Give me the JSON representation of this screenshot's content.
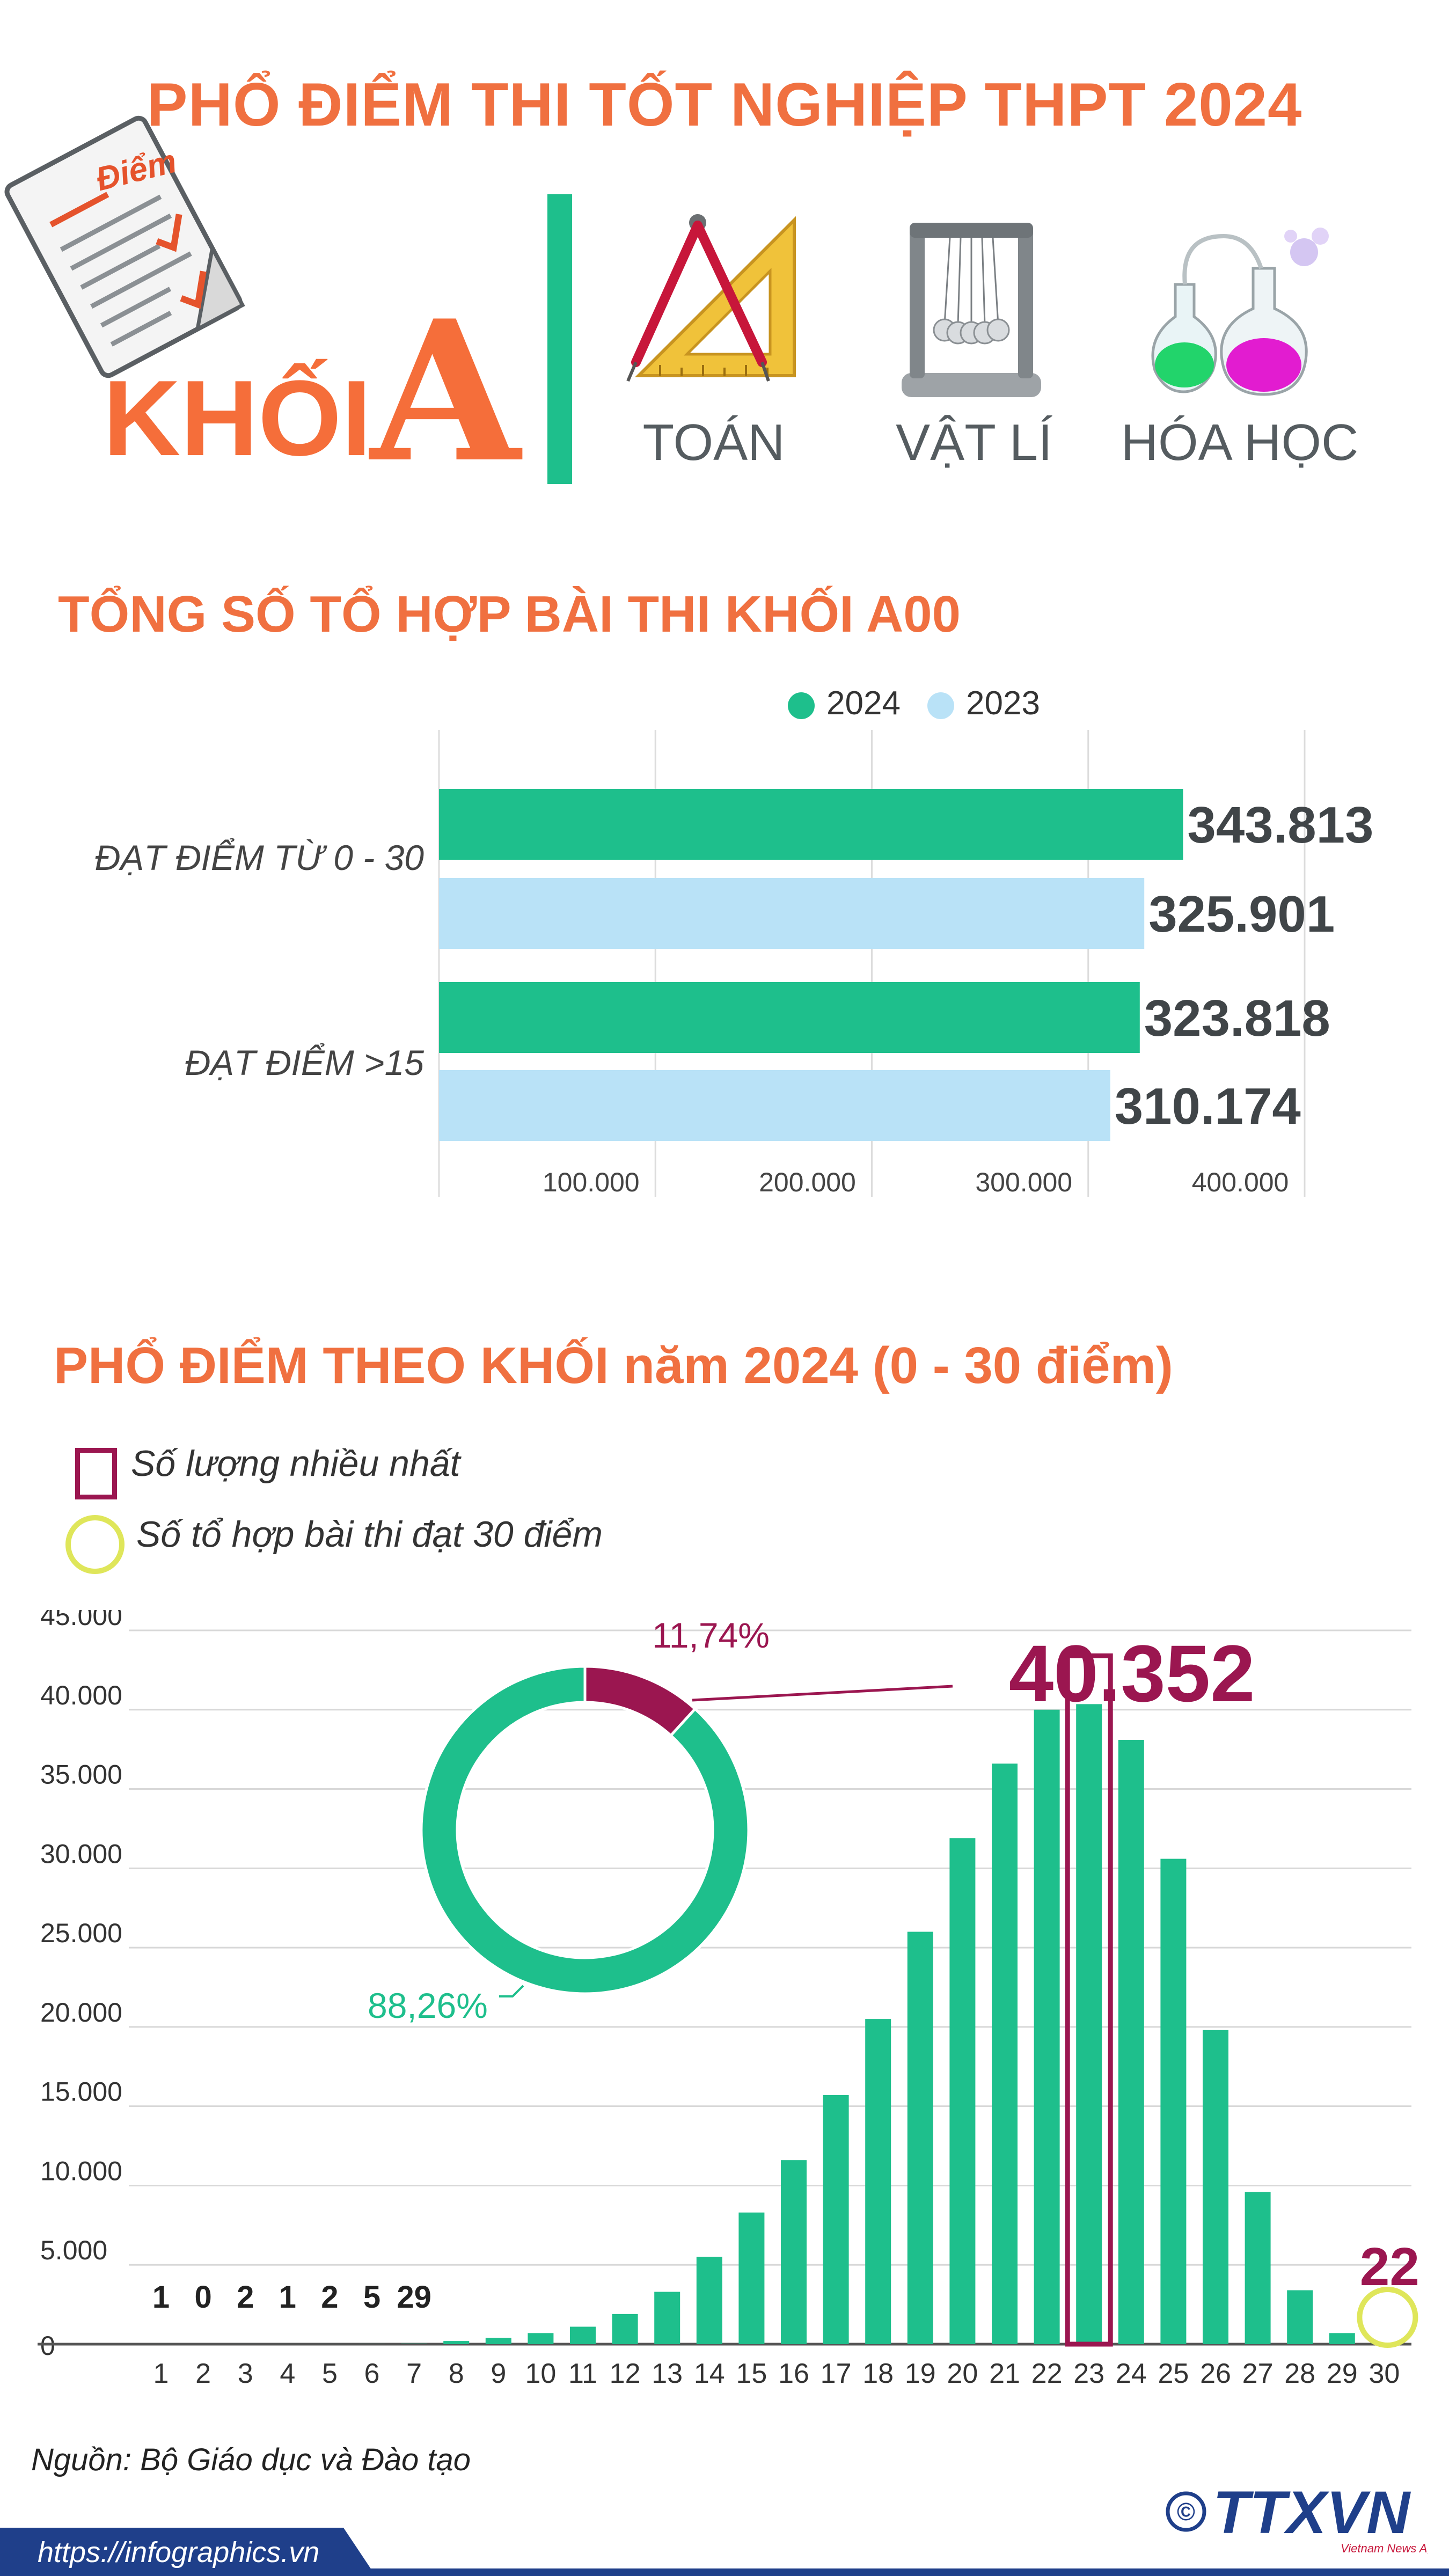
{
  "header": {
    "title": "PHỔ ĐIỂM THI TỐT NGHIỆP THPT 2024",
    "khoi_word": "KHỐI",
    "khoi_letter": "A",
    "paper_label": "Điểm",
    "subjects": [
      "TOÁN",
      "VẬT LÍ",
      "HÓA HỌC"
    ],
    "icons": [
      "exam-paper-icon",
      "compass-ruler-icon",
      "newtons-cradle-icon",
      "chemistry-flask-icon"
    ]
  },
  "colors": {
    "accent": "#f07040",
    "green": "#1ebf8c",
    "light_blue": "#b9e2f7",
    "maroon": "#9b1650",
    "yellow_ring": "#dfe65a",
    "footer_bar": "#1f3f8a"
  },
  "section1": {
    "title": "TỔNG SỐ TỔ HỢP BÀI THI KHỐI A00"
  },
  "section2": {
    "title": "PHỔ ĐIỂM THEO KHỐI năm 2024 (0 - 30 điểm)",
    "legend_max": "Số lượng nhiều nhất",
    "legend_30": "Số tổ hợp bài thi đạt 30 điểm",
    "max_callout": "40.352",
    "callout_30": "22",
    "low_counts": [
      "1",
      "0",
      "2",
      "1",
      "2",
      "5",
      "29"
    ]
  },
  "chart_data": [
    {
      "type": "bar",
      "orientation": "horizontal",
      "categories": [
        "ĐẠT ĐIỂM TỪ 0 - 30",
        "ĐẠT ĐIỂM >15"
      ],
      "series": [
        {
          "name": "2024",
          "values": [
            343813,
            323818
          ],
          "labels": [
            "343.813",
            "323.818"
          ]
        },
        {
          "name": "2023",
          "values": [
            325901,
            310174
          ],
          "labels": [
            "325.901",
            "310.174"
          ]
        }
      ],
      "xticks": [
        "100.000",
        "200.000",
        "300.000",
        "400.000"
      ],
      "xlim": [
        0,
        400000
      ],
      "grid": true,
      "legend": "top"
    },
    {
      "type": "bar",
      "categories": [
        "1",
        "2",
        "3",
        "4",
        "5",
        "6",
        "7",
        "8",
        "9",
        "10",
        "11",
        "12",
        "13",
        "14",
        "15",
        "16",
        "17",
        "18",
        "19",
        "20",
        "21",
        "22",
        "23",
        "24",
        "25",
        "26",
        "27",
        "28",
        "29",
        "30"
      ],
      "values": [
        1,
        0,
        2,
        1,
        2,
        5,
        29,
        200,
        400,
        700,
        1100,
        1900,
        3300,
        5500,
        8300,
        11600,
        15700,
        20500,
        26000,
        31900,
        36600,
        40000,
        40352,
        38100,
        30600,
        19800,
        9600,
        3400,
        700,
        22
      ],
      "yticks": [
        "0",
        "5.000",
        "10.000",
        "15.000",
        "20.000",
        "25.000",
        "30.000",
        "35.000",
        "40.000",
        "45.000"
      ],
      "ylim": [
        0,
        45000
      ],
      "grid": true,
      "highlight_max": "23",
      "highlight_30": "30"
    },
    {
      "type": "pie",
      "donut": true,
      "labels": [
        "11,74%",
        "88,26%"
      ],
      "values": [
        11.74,
        88.26
      ]
    }
  ],
  "footer": {
    "source": "Nguồn: Bộ Giáo dục và Đào tạo",
    "url": "https://infographics.vn",
    "copyright": "©",
    "brand": "TTXVN",
    "brand_sub": "Vietnam News Agency"
  }
}
